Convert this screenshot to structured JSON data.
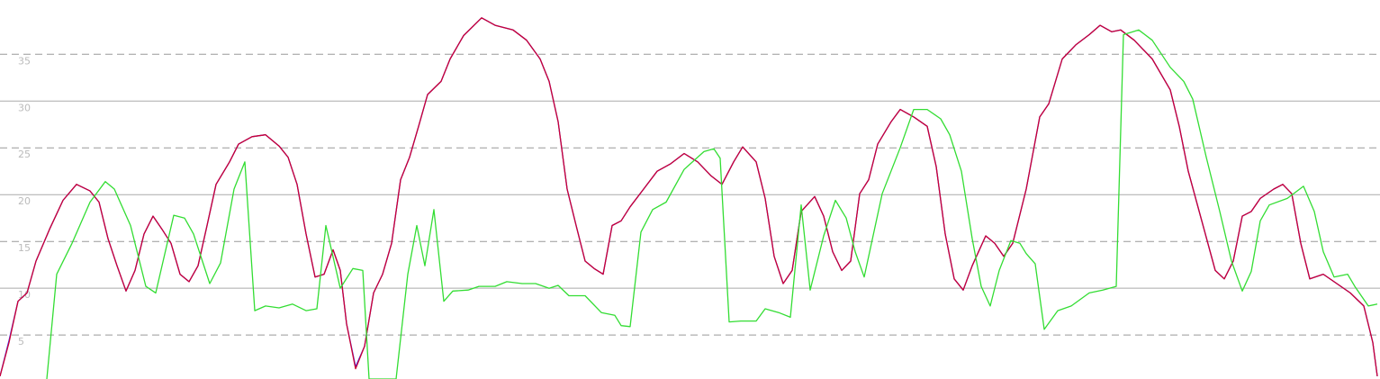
{
  "chart_data": {
    "type": "line",
    "xlim": [
      0,
      1533
    ],
    "ylim": [
      0.3,
      40.8
    ],
    "yticks": [
      5,
      10,
      15,
      20,
      25,
      30,
      35
    ],
    "grid": true,
    "series": [
      {
        "color": "#2a2aff",
        "x": [
          0,
          10,
          20,
          30,
          40,
          55,
          70,
          85,
          100,
          110,
          120,
          130,
          140,
          150,
          160,
          170,
          180,
          190,
          200,
          210,
          220,
          230,
          240,
          255,
          265,
          280,
          295,
          310,
          320,
          330,
          340,
          350,
          360,
          370,
          378,
          385,
          395,
          405,
          415,
          425,
          435,
          445,
          455,
          465,
          475,
          490,
          500,
          515,
          535,
          550,
          570,
          585,
          600,
          610,
          620,
          630,
          640,
          650,
          660,
          670,
          680,
          690,
          700,
          715,
          730,
          745,
          760,
          775,
          790,
          802,
          815,
          825,
          840,
          850,
          860,
          870,
          880,
          890,
          905,
          915,
          925,
          935,
          945,
          955,
          965,
          975,
          990,
          1000,
          1015,
          1030,
          1040,
          1050,
          1060,
          1070,
          1080,
          1095,
          1105,
          1115,
          1125,
          1140,
          1155,
          1165,
          1180,
          1195,
          1210,
          1222,
          1235,
          1245,
          1260,
          1280,
          1300,
          1310,
          1320,
          1335,
          1350,
          1360,
          1370,
          1380,
          1390,
          1400,
          1415,
          1425,
          1435,
          1445,
          1455,
          1470,
          1485,
          1500,
          1515,
          1525,
          1530
        ],
        "values": [
          0.6,
          4.4,
          8.6,
          9.5,
          12.9,
          16.3,
          19.4,
          21.1,
          20.4,
          19.2,
          15.3,
          12.4,
          9.7,
          11.9,
          15.8,
          17.7,
          16.3,
          14.8,
          11.5,
          10.7,
          12.4,
          16.7,
          21.1,
          23.5,
          25.4,
          26.2,
          26.4,
          25.2,
          24.0,
          21.1,
          15.8,
          11.2,
          11.5,
          14.1,
          11.9,
          6.2,
          1.6,
          3.8,
          9.5,
          11.5,
          14.8,
          21.6,
          24.0,
          27.3,
          30.7,
          32.1,
          34.5,
          37.0,
          38.9,
          38.1,
          37.6,
          36.5,
          34.5,
          32.1,
          27.8,
          20.6,
          16.7,
          12.9,
          12.1,
          11.5,
          16.7,
          17.2,
          18.7,
          20.6,
          22.5,
          23.3,
          24.4,
          23.5,
          22.0,
          21.1,
          23.5,
          25.1,
          23.5,
          19.6,
          13.4,
          10.5,
          11.9,
          18.2,
          19.8,
          17.7,
          13.9,
          11.9,
          12.9,
          20.1,
          21.6,
          25.4,
          27.8,
          29.1,
          28.3,
          27.3,
          23.0,
          15.8,
          11.0,
          9.8,
          12.4,
          15.6,
          14.8,
          13.4,
          14.8,
          20.6,
          28.3,
          29.7,
          34.5,
          36.0,
          37.1,
          38.1,
          37.4,
          37.6,
          36.5,
          34.5,
          31.2,
          27.3,
          22.5,
          17.2,
          11.9,
          11.0,
          12.9,
          17.7,
          18.2,
          19.6,
          20.6,
          21.1,
          20.1,
          14.8,
          11.0,
          11.5,
          10.5,
          9.5,
          8.1,
          4.2,
          0.6
        ]
      },
      {
        "color": "#cc0033",
        "x": [
          0,
          10,
          20,
          30,
          40,
          55,
          70,
          85,
          100,
          110,
          120,
          130,
          140,
          150,
          160,
          170,
          180,
          190,
          200,
          210,
          220,
          230,
          240,
          255,
          265,
          280,
          295,
          310,
          320,
          330,
          340,
          350,
          360,
          370,
          378,
          385,
          395,
          405,
          415,
          425,
          435,
          445,
          455,
          465,
          475,
          490,
          500,
          515,
          535,
          550,
          570,
          585,
          600,
          610,
          620,
          630,
          640,
          650,
          660,
          670,
          680,
          690,
          700,
          715,
          730,
          745,
          760,
          775,
          790,
          802,
          815,
          825,
          840,
          850,
          860,
          870,
          880,
          890,
          905,
          915,
          925,
          935,
          945,
          955,
          965,
          975,
          990,
          1000,
          1015,
          1030,
          1040,
          1050,
          1060,
          1070,
          1080,
          1095,
          1105,
          1115,
          1125,
          1140,
          1155,
          1165,
          1180,
          1195,
          1210,
          1222,
          1235,
          1245,
          1260,
          1280,
          1300,
          1310,
          1320,
          1335,
          1350,
          1360,
          1370,
          1380,
          1390,
          1400,
          1415,
          1425,
          1435,
          1445,
          1455,
          1470,
          1485,
          1500,
          1515,
          1525,
          1530
        ],
        "values": [
          0.6,
          4.2,
          8.6,
          9.5,
          12.9,
          16.3,
          19.4,
          21.1,
          20.4,
          19.2,
          15.3,
          12.4,
          9.7,
          11.9,
          15.8,
          17.7,
          16.3,
          14.8,
          11.5,
          10.7,
          12.4,
          16.7,
          21.1,
          23.5,
          25.4,
          26.2,
          26.4,
          25.2,
          24.0,
          21.1,
          15.8,
          11.2,
          11.5,
          14.1,
          11.9,
          6.2,
          1.4,
          3.8,
          9.5,
          11.5,
          14.8,
          21.6,
          24.0,
          27.3,
          30.7,
          32.1,
          34.5,
          37.0,
          38.9,
          38.1,
          37.6,
          36.5,
          34.5,
          32.1,
          27.8,
          20.6,
          16.7,
          12.9,
          12.1,
          11.5,
          16.7,
          17.2,
          18.7,
          20.6,
          22.5,
          23.3,
          24.4,
          23.5,
          22.0,
          21.1,
          23.5,
          25.1,
          23.5,
          19.6,
          13.4,
          10.5,
          11.9,
          18.2,
          19.8,
          17.7,
          13.9,
          11.9,
          12.9,
          20.1,
          21.6,
          25.4,
          27.8,
          29.1,
          28.3,
          27.3,
          23.0,
          15.8,
          11.0,
          9.8,
          12.4,
          15.6,
          14.8,
          13.4,
          14.8,
          20.6,
          28.3,
          29.7,
          34.5,
          36.0,
          37.1,
          38.1,
          37.4,
          37.6,
          36.5,
          34.5,
          31.2,
          27.3,
          22.5,
          17.2,
          11.9,
          11.0,
          12.9,
          17.7,
          18.2,
          19.6,
          20.6,
          21.1,
          20.1,
          14.8,
          11.0,
          11.5,
          10.5,
          9.5,
          8.1,
          4.2,
          0.6
        ]
      },
      {
        "color": "#33dd33",
        "x": [
          52,
          63,
          80,
          100,
          117,
          127,
          145,
          162,
          173,
          193,
          205,
          215,
          233,
          245,
          260,
          272,
          283,
          295,
          310,
          325,
          340,
          352,
          362,
          378,
          392,
          403,
          410,
          440,
          453,
          463,
          472,
          482,
          493,
          503,
          520,
          532,
          550,
          563,
          580,
          595,
          610,
          620,
          632,
          650,
          668,
          683,
          690,
          700,
          712,
          725,
          740,
          760,
          782,
          793,
          800,
          810,
          823,
          840,
          850,
          865,
          878,
          890,
          900,
          915,
          928,
          940,
          950,
          960,
          980,
          1000,
          1015,
          1030,
          1045,
          1055,
          1068,
          1080,
          1090,
          1100,
          1110,
          1123,
          1133,
          1140,
          1150,
          1160,
          1175,
          1190,
          1210,
          1225,
          1240,
          1248,
          1265,
          1280,
          1300,
          1315,
          1325,
          1340,
          1355,
          1368,
          1380,
          1390,
          1400,
          1410,
          1430,
          1448,
          1460,
          1470,
          1482,
          1497,
          1505,
          1520,
          1530
        ],
        "values": [
          0.3,
          11.5,
          14.8,
          19.2,
          21.4,
          20.6,
          16.7,
          10.2,
          9.5,
          17.8,
          17.5,
          15.8,
          10.5,
          12.7,
          20.6,
          23.5,
          7.6,
          8.1,
          7.9,
          8.3,
          7.6,
          7.8,
          16.7,
          10.0,
          12.1,
          11.9,
          0.3,
          0.3,
          11.5,
          16.7,
          12.4,
          18.4,
          8.6,
          9.7,
          9.8,
          10.2,
          10.2,
          10.7,
          10.5,
          10.5,
          10.0,
          10.3,
          9.2,
          9.2,
          7.4,
          7.1,
          6.0,
          5.9,
          16.0,
          18.4,
          19.2,
          22.7,
          24.6,
          24.9,
          23.9,
          6.4,
          6.5,
          6.5,
          7.8,
          7.4,
          6.9,
          18.9,
          9.8,
          15.6,
          19.4,
          17.5,
          13.9,
          11.2,
          20.1,
          25.0,
          29.1,
          29.1,
          28.1,
          26.4,
          22.5,
          15.3,
          10.2,
          8.1,
          11.9,
          15.1,
          14.8,
          13.7,
          12.6,
          5.6,
          7.6,
          8.1,
          9.5,
          9.8,
          10.2,
          37.1,
          37.6,
          36.5,
          33.6,
          32.1,
          30.2,
          24.0,
          18.2,
          12.9,
          9.7,
          11.8,
          17.2,
          18.9,
          19.6,
          20.9,
          18.2,
          13.9,
          11.2,
          11.5,
          10.2,
          8.1,
          8.3
        ]
      }
    ]
  }
}
